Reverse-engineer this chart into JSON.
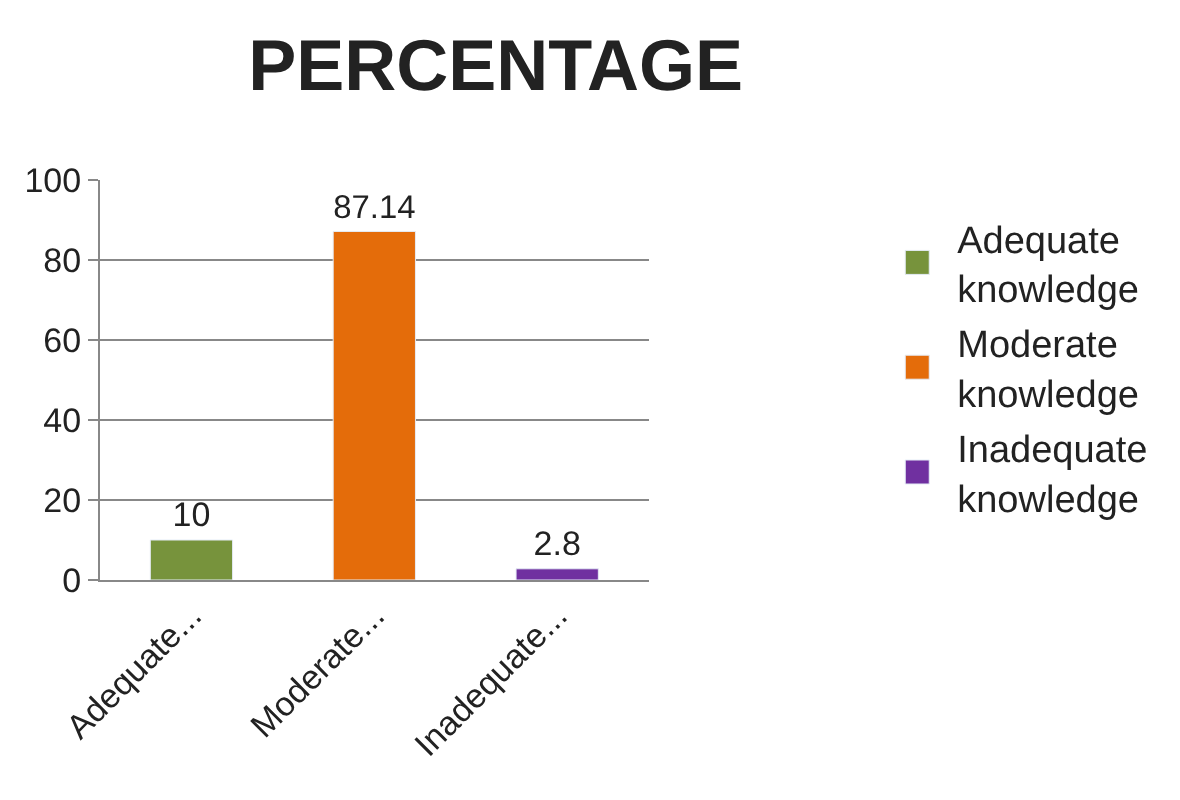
{
  "chart_data": {
    "type": "bar",
    "title": "PERCENTAGE",
    "categories": [
      "Adequate...",
      "Moderate...",
      "Inadequate..."
    ],
    "series": [
      {
        "name": "Adequate knowledge",
        "color": "#77933c",
        "values": [
          10,
          null,
          null
        ]
      },
      {
        "name": "Moderate knowledge",
        "color": "#e46c0a",
        "values": [
          null,
          87.14,
          null
        ]
      },
      {
        "name": "Inadequate knowledge",
        "color": "#7030a0",
        "values": [
          null,
          null,
          2.8
        ]
      }
    ],
    "ylim": [
      0,
      100
    ],
    "yticks": [
      0,
      20,
      40,
      60,
      80,
      100
    ],
    "grid": "y",
    "legend": "right",
    "data_labels": true
  }
}
